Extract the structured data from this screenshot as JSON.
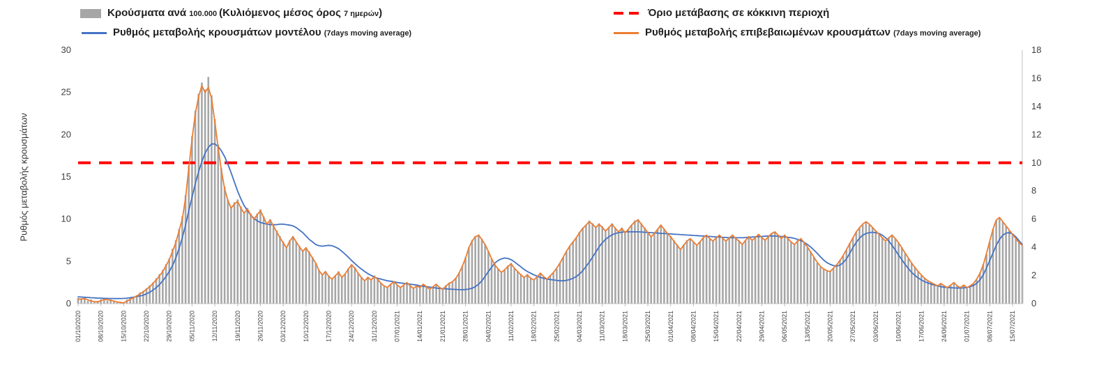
{
  "legend": {
    "items": [
      {
        "id": "cases-per-100k",
        "swatch": "bar",
        "color": "#a6a6a6",
        "parts": [
          "Κρούσματα ανά ",
          "100.000 ",
          "(Κυλιόμενος μέσος όρος ",
          "7 ημερών",
          ")"
        ]
      },
      {
        "id": "red-zone-threshold",
        "swatch": "dash",
        "color": "#ff0000",
        "parts": [
          "Όριο μετάβασης σε κόκκινη περιοχή"
        ]
      },
      {
        "id": "model-rate",
        "swatch": "line",
        "color": "#4472c4",
        "parts": [
          "Ρυθμός μεταβολής κρουσμάτων μοντέλου ",
          "(7days moving average)"
        ]
      },
      {
        "id": "confirmed-rate",
        "swatch": "line",
        "color": "#ed7d31",
        "parts": [
          "Ρυθμός μεταβολής επιβεβαιωμένων κρουσμάτων ",
          "(7days moving average)"
        ]
      }
    ]
  },
  "chart_data": {
    "type": "composite (bar + line + threshold line)",
    "background": "#ffffff",
    "grid": false,
    "legend_position": "top",
    "axes": {
      "left": {
        "label": "Ρυθμός μεταβολής κρουσμάτων",
        "min": 0,
        "max": 30,
        "ticks": [
          0,
          5,
          10,
          15,
          20,
          25,
          30
        ]
      },
      "right": {
        "label": "",
        "min": 0,
        "max": 18,
        "ticks": [
          0,
          2,
          4,
          6,
          8,
          10,
          12,
          14,
          16,
          18
        ]
      }
    },
    "x": {
      "days": 291,
      "tick_interval_days": 7,
      "tick_labels": [
        "01/10/2020",
        "08/10/2020",
        "15/10/2020",
        "22/10/2020",
        "29/10/2020",
        "05/11/2020",
        "12/11/2020",
        "19/11/2020",
        "26/11/2020",
        "03/12/2020",
        "10/12/2020",
        "17/12/2020",
        "24/12/2020",
        "31/12/2020",
        "07/01/2021",
        "14/01/2021",
        "21/01/2021",
        "28/01/2021",
        "04/02/2021",
        "11/02/2021",
        "18/02/2021",
        "25/02/2021",
        "04/03/2021",
        "11/03/2021",
        "18/03/2021",
        "25/03/2021",
        "01/04/2021",
        "08/04/2021",
        "15/04/2021",
        "22/04/2021",
        "29/04/2021",
        "06/05/2021",
        "13/05/2021",
        "20/05/2021",
        "27/05/2021",
        "03/06/2021",
        "10/06/2021",
        "17/06/2021",
        "24/06/2021",
        "01/07/2021",
        "08/07/2021",
        "15/07/2021"
      ]
    },
    "threshold": {
      "name": "Όριο μετάβασης σε κόκκινη περιοχή",
      "axis": "right",
      "value": 10,
      "color": "#ff0000",
      "style": "dashed"
    },
    "series": [
      {
        "name": "Κρούσματα ανά 100.000 (Κυλιόμενος μέσος όρος 7 ημερών)",
        "type": "bar",
        "axis": "right",
        "color": "#a6a6a6",
        "values": [
          0.4,
          0.3,
          0.5,
          0.2,
          0.3,
          0.1,
          0.2,
          0.3,
          0.4,
          0.2,
          0.3,
          0.2,
          0.1,
          0.1,
          0.1,
          0.3,
          0.4,
          0.5,
          0.6,
          0.8,
          0.9,
          1.1,
          1.3,
          1.5,
          1.8,
          2.1,
          2.4,
          2.8,
          3.2,
          3.9,
          4.5,
          5.3,
          6.2,
          7.7,
          9.8,
          11.9,
          13.7,
          14.9,
          15.7,
          15.2,
          16.1,
          14.8,
          13.1,
          11.3,
          9.6,
          8.3,
          7.4,
          6.9,
          7.2,
          7.4,
          6.9,
          6.5,
          6.8,
          6.4,
          6.1,
          6.4,
          6.7,
          6.2,
          5.7,
          6.0,
          5.6,
          5.2,
          4.8,
          4.4,
          4.0,
          4.5,
          4.8,
          4.4,
          4.1,
          3.8,
          4.0,
          3.7,
          3.3,
          2.9,
          2.4,
          2.1,
          2.3,
          2.0,
          1.8,
          2.0,
          2.3,
          1.9,
          2.1,
          2.5,
          2.8,
          2.6,
          2.2,
          1.9,
          1.6,
          1.9,
          1.7,
          2.0,
          1.8,
          1.5,
          1.3,
          1.2,
          1.4,
          1.6,
          1.3,
          1.2,
          1.3,
          1.5,
          1.3,
          1.1,
          1.3,
          1.2,
          1.4,
          1.2,
          1.0,
          1.2,
          1.4,
          1.2,
          1.0,
          1.3,
          1.5,
          1.6,
          1.8,
          2.2,
          2.7,
          3.3,
          4.0,
          4.5,
          4.8,
          4.9,
          4.6,
          4.2,
          3.7,
          3.2,
          2.8,
          2.5,
          2.2,
          2.4,
          2.7,
          2.9,
          2.5,
          2.3,
          2.1,
          1.9,
          2.1,
          1.8,
          1.7,
          1.9,
          2.2,
          1.9,
          1.8,
          2.0,
          2.2,
          2.5,
          2.9,
          3.3,
          3.7,
          4.1,
          4.4,
          4.7,
          5.1,
          5.4,
          5.6,
          5.9,
          5.7,
          5.4,
          5.7,
          5.5,
          5.2,
          5.4,
          5.7,
          5.4,
          5.1,
          5.4,
          5.1,
          5.3,
          5.6,
          5.9,
          6.0,
          5.7,
          5.4,
          5.1,
          4.8,
          5.0,
          5.3,
          5.6,
          5.3,
          5.0,
          4.8,
          4.5,
          4.2,
          3.9,
          4.2,
          4.5,
          4.6,
          4.4,
          4.2,
          4.4,
          4.7,
          4.9,
          4.6,
          4.5,
          4.7,
          4.9,
          4.6,
          4.5,
          4.7,
          4.9,
          4.6,
          4.5,
          4.2,
          4.5,
          4.8,
          4.5,
          4.7,
          4.9,
          4.7,
          4.5,
          4.8,
          5.0,
          5.1,
          4.9,
          4.6,
          4.9,
          4.6,
          4.4,
          4.2,
          4.5,
          4.6,
          4.3,
          4.0,
          3.7,
          3.3,
          2.9,
          2.6,
          2.5,
          2.3,
          2.3,
          2.5,
          2.8,
          3.1,
          3.4,
          3.8,
          4.3,
          4.7,
          5.1,
          5.4,
          5.6,
          5.8,
          5.6,
          5.4,
          5.2,
          4.9,
          4.7,
          4.4,
          4.7,
          4.9,
          4.6,
          4.3,
          4.0,
          3.6,
          3.2,
          2.9,
          2.6,
          2.3,
          2.0,
          1.8,
          1.6,
          1.5,
          1.4,
          1.3,
          1.4,
          1.3,
          1.1,
          1.3,
          1.5,
          1.3,
          1.1,
          1.3,
          1.1,
          1.3,
          1.4,
          1.7,
          2.2,
          2.8,
          3.5,
          4.4,
          5.3,
          5.9,
          6.1,
          5.8,
          5.5,
          5.2,
          4.9,
          4.6,
          4.3,
          4.1
        ]
      },
      {
        "name": "Ρυθμός μεταβολής κρουσμάτων μοντέλου (7days moving average)",
        "type": "line",
        "axis": "left",
        "color": "#4472c4",
        "values": [
          0.8,
          0.78,
          0.75,
          0.73,
          0.7,
          0.68,
          0.65,
          0.64,
          0.63,
          0.62,
          0.61,
          0.6,
          0.6,
          0.6,
          0.62,
          0.65,
          0.7,
          0.76,
          0.83,
          0.91,
          1.0,
          1.15,
          1.35,
          1.6,
          1.9,
          2.25,
          2.7,
          3.2,
          3.8,
          4.5,
          5.4,
          6.5,
          7.8,
          9.3,
          11.0,
          12.6,
          14.2,
          15.6,
          16.8,
          17.8,
          18.5,
          18.9,
          18.9,
          18.6,
          18.1,
          17.4,
          16.5,
          15.5,
          14.4,
          13.3,
          12.4,
          11.6,
          11.0,
          10.5,
          10.1,
          9.8,
          9.6,
          9.5,
          9.4,
          9.35,
          9.35,
          9.35,
          9.4,
          9.4,
          9.35,
          9.3,
          9.2,
          9.0,
          8.7,
          8.4,
          8.0,
          7.6,
          7.3,
          7.0,
          6.85,
          6.8,
          6.85,
          6.9,
          6.85,
          6.7,
          6.5,
          6.2,
          5.85,
          5.5,
          5.1,
          4.75,
          4.4,
          4.1,
          3.8,
          3.55,
          3.35,
          3.15,
          3.0,
          2.9,
          2.8,
          2.7,
          2.65,
          2.6,
          2.5,
          2.45,
          2.4,
          2.35,
          2.3,
          2.25,
          2.2,
          2.1,
          2.05,
          2.0,
          1.95,
          1.9,
          1.85,
          1.8,
          1.78,
          1.75,
          1.72,
          1.7,
          1.68,
          1.66,
          1.65,
          1.67,
          1.72,
          1.82,
          2.0,
          2.3,
          2.7,
          3.2,
          3.8,
          4.3,
          4.8,
          5.1,
          5.3,
          5.4,
          5.35,
          5.2,
          4.95,
          4.65,
          4.35,
          4.05,
          3.8,
          3.6,
          3.4,
          3.25,
          3.1,
          3.0,
          2.9,
          2.85,
          2.8,
          2.75,
          2.7,
          2.7,
          2.75,
          2.85,
          3.0,
          3.2,
          3.5,
          3.9,
          4.4,
          4.9,
          5.5,
          6.1,
          6.7,
          7.2,
          7.6,
          7.9,
          8.15,
          8.3,
          8.4,
          8.45,
          8.5,
          8.5,
          8.5,
          8.5,
          8.5,
          8.48,
          8.45,
          8.42,
          8.4,
          8.38,
          8.35,
          8.32,
          8.3,
          8.28,
          8.25,
          8.22,
          8.2,
          8.17,
          8.15,
          8.12,
          8.1,
          8.07,
          8.05,
          8.02,
          8.0,
          7.97,
          7.95,
          7.92,
          7.9,
          7.88,
          7.85,
          7.83,
          7.8,
          7.8,
          7.8,
          7.8,
          7.8,
          7.82,
          7.85,
          7.88,
          7.9,
          7.93,
          7.95,
          7.98,
          8.0,
          8.0,
          8.0,
          7.98,
          7.95,
          7.9,
          7.85,
          7.8,
          7.72,
          7.6,
          7.45,
          7.25,
          7.0,
          6.7,
          6.35,
          5.95,
          5.55,
          5.15,
          4.85,
          4.65,
          4.5,
          4.45,
          4.55,
          4.85,
          5.3,
          5.95,
          6.65,
          7.25,
          7.75,
          8.1,
          8.3,
          8.4,
          8.45,
          8.4,
          8.3,
          8.1,
          7.8,
          7.4,
          6.9,
          6.35,
          5.75,
          5.2,
          4.65,
          4.15,
          3.7,
          3.35,
          3.05,
          2.8,
          2.6,
          2.45,
          2.3,
          2.2,
          2.1,
          2.0,
          1.95,
          1.9,
          1.88,
          1.86,
          1.85,
          1.85,
          1.86,
          1.9,
          2.0,
          2.15,
          2.4,
          2.8,
          3.4,
          4.2,
          5.1,
          6.0,
          6.9,
          7.6,
          8.1,
          8.35,
          8.4,
          8.25,
          7.9,
          7.45,
          7.0
        ]
      },
      {
        "name": "Ρυθμός μεταβολής επιβεβαιωμένων κρουσμάτων (7days moving average)",
        "type": "line",
        "axis": "left",
        "color": "#ed7d31",
        "values": [
          0.5,
          0.55,
          0.6,
          0.45,
          0.3,
          0.25,
          0.2,
          0.35,
          0.5,
          0.45,
          0.4,
          0.3,
          0.2,
          0.15,
          0.1,
          0.3,
          0.5,
          0.7,
          0.9,
          1.15,
          1.4,
          1.7,
          2.0,
          2.4,
          2.8,
          3.3,
          3.8,
          4.5,
          5.2,
          6.2,
          7.2,
          8.6,
          10.0,
          12.5,
          16.0,
          19.5,
          22.5,
          24.5,
          25.8,
          25.0,
          25.6,
          24.3,
          21.5,
          18.5,
          15.8,
          13.6,
          12.2,
          11.3,
          11.8,
          12.1,
          11.3,
          10.7,
          11.2,
          10.5,
          10.0,
          10.5,
          11.0,
          10.2,
          9.4,
          9.9,
          9.2,
          8.5,
          7.8,
          7.2,
          6.6,
          7.4,
          7.9,
          7.3,
          6.7,
          6.2,
          6.6,
          6.0,
          5.4,
          4.8,
          3.9,
          3.4,
          3.8,
          3.2,
          2.9,
          3.3,
          3.7,
          3.1,
          3.5,
          4.1,
          4.6,
          4.2,
          3.6,
          3.1,
          2.7,
          3.1,
          2.8,
          3.2,
          2.9,
          2.4,
          2.1,
          1.9,
          2.3,
          2.6,
          2.2,
          1.9,
          2.2,
          2.5,
          2.1,
          1.8,
          2.1,
          1.9,
          2.3,
          2.0,
          1.7,
          2.0,
          2.3,
          1.9,
          1.7,
          2.1,
          2.4,
          2.6,
          3.0,
          3.6,
          4.4,
          5.4,
          6.6,
          7.4,
          7.9,
          8.1,
          7.6,
          7.0,
          6.2,
          5.3,
          4.6,
          4.1,
          3.7,
          4.0,
          4.4,
          4.7,
          4.2,
          3.8,
          3.4,
          3.1,
          3.4,
          3.0,
          2.8,
          3.2,
          3.6,
          3.2,
          2.9,
          3.3,
          3.7,
          4.2,
          4.8,
          5.5,
          6.2,
          6.8,
          7.3,
          7.8,
          8.4,
          8.9,
          9.3,
          9.7,
          9.4,
          9.0,
          9.4,
          9.0,
          8.6,
          9.0,
          9.4,
          8.9,
          8.5,
          8.9,
          8.4,
          8.8,
          9.3,
          9.7,
          9.9,
          9.4,
          8.9,
          8.4,
          7.9,
          8.3,
          8.8,
          9.3,
          8.8,
          8.3,
          7.9,
          7.4,
          6.9,
          6.4,
          6.9,
          7.4,
          7.7,
          7.3,
          6.9,
          7.3,
          7.8,
          8.1,
          7.7,
          7.4,
          7.8,
          8.1,
          7.7,
          7.4,
          7.8,
          8.1,
          7.7,
          7.4,
          7.0,
          7.5,
          7.9,
          7.5,
          7.8,
          8.2,
          7.8,
          7.5,
          7.9,
          8.3,
          8.5,
          8.1,
          7.7,
          8.1,
          7.7,
          7.3,
          7.0,
          7.4,
          7.7,
          7.2,
          6.7,
          6.1,
          5.5,
          4.9,
          4.4,
          4.1,
          3.9,
          3.8,
          4.2,
          4.6,
          5.1,
          5.7,
          6.4,
          7.1,
          7.8,
          8.5,
          9.0,
          9.4,
          9.7,
          9.4,
          9.0,
          8.6,
          8.2,
          7.8,
          7.4,
          7.8,
          8.1,
          7.7,
          7.2,
          6.6,
          6.0,
          5.4,
          4.8,
          4.3,
          3.8,
          3.4,
          3.0,
          2.7,
          2.5,
          2.3,
          2.1,
          2.4,
          2.1,
          1.9,
          2.2,
          2.5,
          2.1,
          1.9,
          2.2,
          1.9,
          2.1,
          2.4,
          2.9,
          3.6,
          4.6,
          5.9,
          7.4,
          8.8,
          9.9,
          10.2,
          9.7,
          9.2,
          8.7,
          8.2,
          7.7,
          7.2,
          6.9
        ]
      }
    ]
  }
}
